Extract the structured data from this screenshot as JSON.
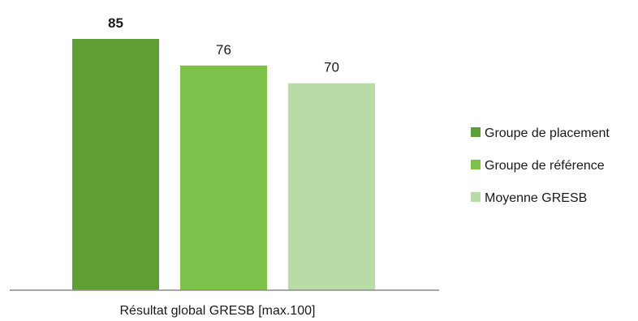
{
  "chart_data": {
    "type": "bar",
    "xlabel": "Résultat global GRESB [max.100]",
    "ylabel": "",
    "ylim": [
      0,
      100
    ],
    "grid": false,
    "legend_position": "right",
    "series": [
      {
        "name": "Groupe de placement",
        "values": [
          85
        ],
        "color": "#5f9e35",
        "label_bold": true
      },
      {
        "name": "Groupe de référence",
        "values": [
          76
        ],
        "color": "#7dc04a",
        "label_bold": false
      },
      {
        "name": "Moyenne GRESB",
        "values": [
          70
        ],
        "color": "#b8dba8",
        "label_bold": false
      }
    ]
  }
}
